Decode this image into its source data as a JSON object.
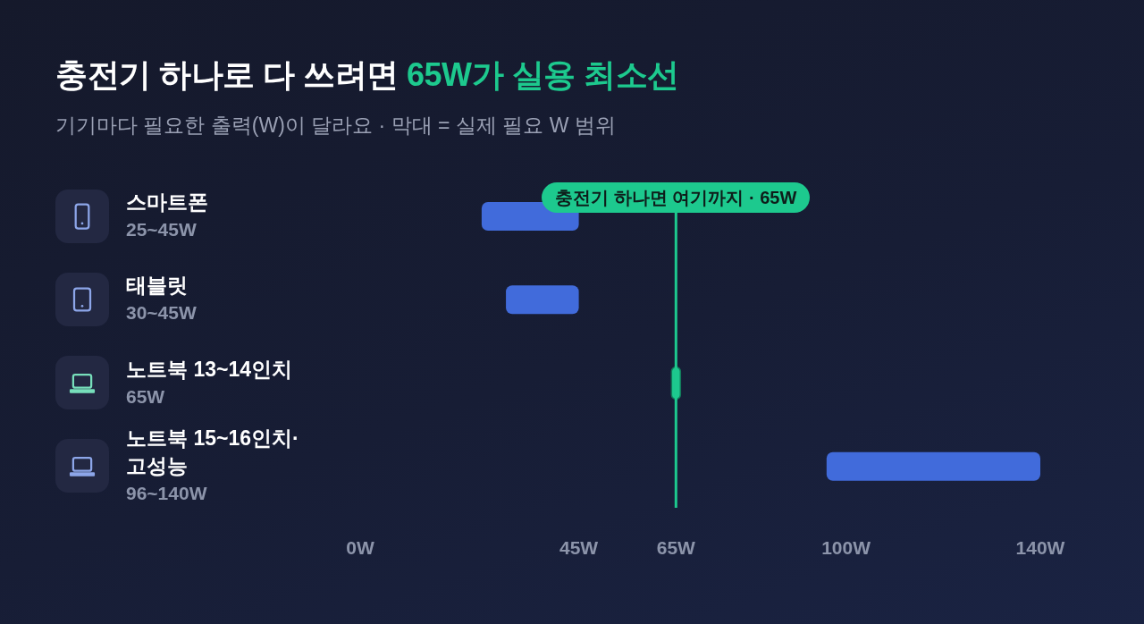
{
  "chart_data": {
    "type": "bar",
    "orientation": "horizontal",
    "title": "충전기 하나로 다 쓰려면 65W가 실용 최소선",
    "subtitle": "기기마다 필요한 출력(W)이 달라요 · 막대 = 실제 필요 W 범위",
    "categories": [
      "스마트폰\n25~45W",
      "태블릿\n30~45W",
      "노트북 13~14인치\n65W",
      "노트북 15~16인치·고성능\n96~140W"
    ],
    "base": [
      25,
      30,
      65,
      96
    ],
    "values": [
      20,
      15,
      0,
      44
    ],
    "colors": [
      "#416bdb",
      "#416bdb",
      "#1dc98e",
      "#416bdb"
    ],
    "xlim": [
      0,
      140
    ],
    "xticks": [
      {
        "value": 0,
        "label": "0W"
      },
      {
        "value": 45,
        "label": "45W"
      },
      {
        "value": 65,
        "label": "65W"
      },
      {
        "value": 100,
        "label": "100W"
      },
      {
        "value": 140,
        "label": "140W"
      }
    ],
    "ref_lines": [
      {
        "axis": "x",
        "value": 65,
        "label": "충전기 하나면 여기까지 · 65W",
        "color": "#1dc98e"
      }
    ]
  }
}
